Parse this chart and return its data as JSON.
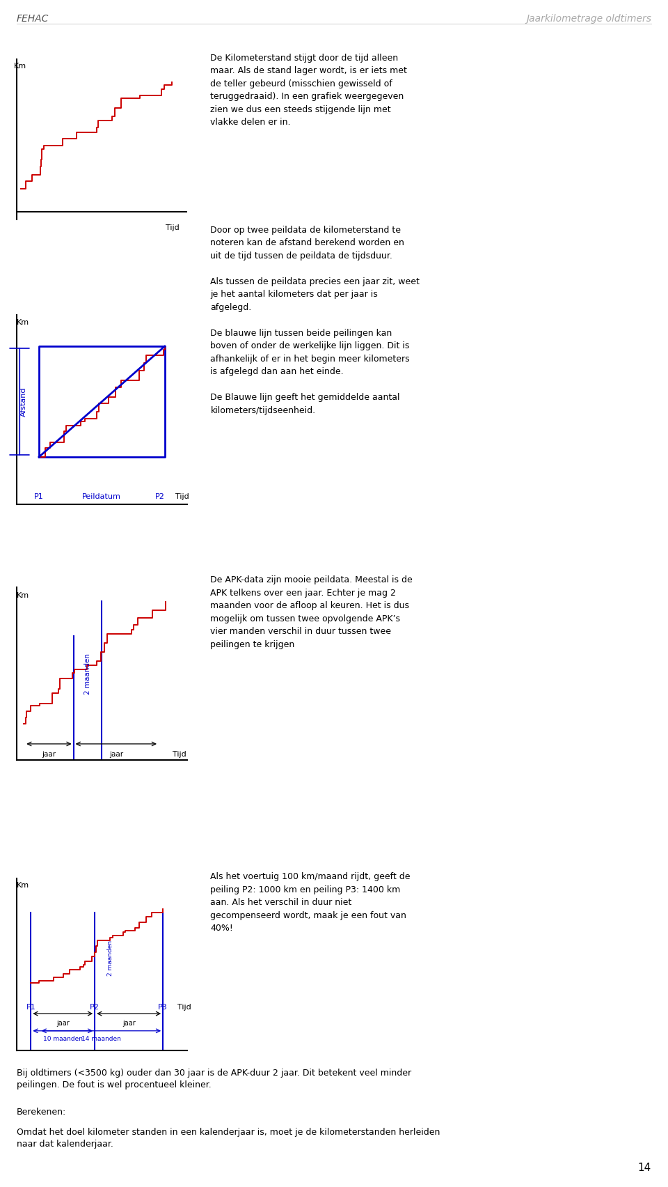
{
  "page_header_left": "FEHAC",
  "page_header_right": "Jaarkilometrage oldtimers",
  "page_number": "14",
  "bg_color": "#ffffff",
  "red_color": "#cc0000",
  "blue_color": "#0000cc",
  "black_color": "#000000",
  "chart1_ylabel": "Km",
  "chart1_xlabel": "Tijd",
  "chart1_text": [
    "De Kilometerstand stijgt door de tijd alleen",
    "maar. Als de stand lager wordt, is er iets met",
    "de teller gebeurd (misschien gewisseld of",
    "teruggedraaid). In een grafiek weergegeven",
    "zien we dus een steeds stijgende lijn met",
    "vlakke delen er in."
  ],
  "chart2_ylabel": "Km",
  "chart2_afstand": "Afstand",
  "chart2_p1": "P1",
  "chart2_peil": "Peildatum",
  "chart2_p2": "P2",
  "chart2_tijd": "Tijd",
  "chart2_text": [
    "Door op twee peildata de kilometerstand te",
    "noteren kan de afstand berekend worden en",
    "uit de tijd tussen de peildata de tijdsduur.",
    "",
    "Als tussen de peildata precies een jaar zit, weet",
    "je het aantal kilometers dat per jaar is",
    "afgelegd.",
    "",
    "De blauwe lijn tussen beide peilingen kan",
    "boven of onder de werkelijke lijn liggen. Dit is",
    "afhankelijk of er in het begin meer kilometers",
    "is afgelegd dan aan het einde.",
    "",
    "De Blauwe lijn geeft het gemiddelde aantal",
    "kilometers/tijdseenheid."
  ],
  "chart3_ylabel": "Km",
  "chart3_2maanden": "2 maanden",
  "chart3_jaar1": "jaar",
  "chart3_jaar2": "jaar",
  "chart3_tijd": "Tijd",
  "chart3_text": [
    "De APK-data zijn mooie peildata. Meestal is de",
    "APK telkens over een jaar. Echter je mag 2",
    "maanden voor de afloop al keuren. Het is dus",
    "mogelijk om tussen twee opvolgende APK’s",
    "vier manden verschil in duur tussen twee",
    "peilingen te krijgen"
  ],
  "chart4_ylabel": "Km",
  "chart4_2maanden": "2 maanden",
  "chart4_10maanden": "10 maanden",
  "chart4_14maanden": "14 maanden",
  "chart4_P1": "P1",
  "chart4_P2": "P2",
  "chart4_P3": "P3",
  "chart4_jaar1": "jaar",
  "chart4_jaar2": "jaar",
  "chart4_tijd": "Tijd",
  "chart4_text": [
    "Als het voertuig 100 km/maand rijdt, geeft de",
    "peiling P2: 1000 km en peiling P3: 1400 km",
    "aan. Als het verschil in duur niet",
    "gecompenseerd wordt, maak je een fout van",
    "40%!"
  ],
  "bottom1": "Bij oldtimers (<3500 kg) ouder dan 30 jaar is de APK-duur 2 jaar. Dit betekent veel minder",
  "bottom1b": "peilingen. De fout is wel procentueel kleiner.",
  "bottom2": "Berekenen:",
  "bottom3": "Omdat het doel kilometer standen in een kalenderjaar is, moet je de kilometerstanden herleiden",
  "bottom3b": "naar dat kalenderjaar."
}
